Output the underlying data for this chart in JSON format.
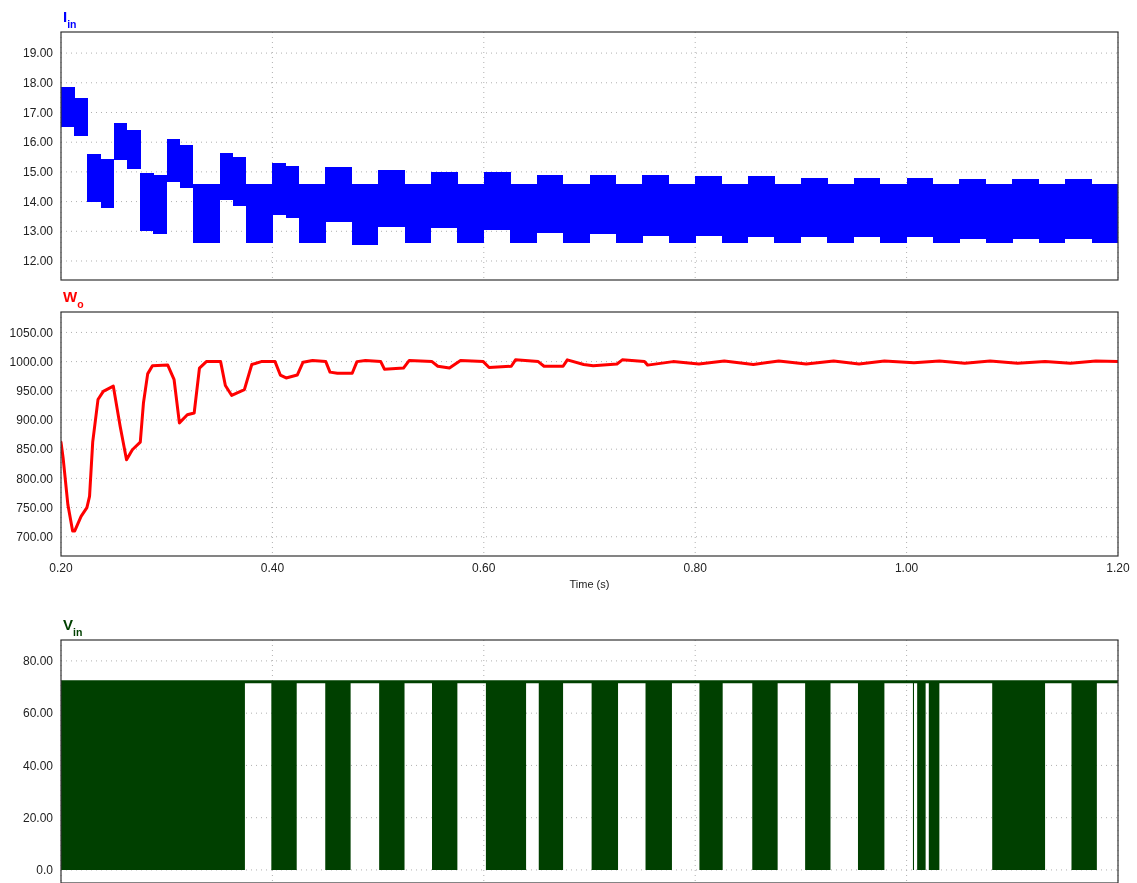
{
  "chart_data": [
    {
      "type": "bar",
      "title": "I$_{in}$",
      "xlim": [
        0.2,
        1.2
      ],
      "ylim": [
        11.36,
        19.71
      ],
      "grid": true,
      "tick_labels": "y",
      "xticks": [
        0.2,
        0.4,
        0.6,
        0.8,
        1.0,
        1.2
      ],
      "yticks": [
        {
          "value": 12,
          "label": "12.00"
        },
        {
          "value": 13,
          "label": "13.00"
        },
        {
          "value": 14,
          "label": "14.00"
        },
        {
          "value": 15,
          "label": "15.00"
        },
        {
          "value": 16,
          "label": "16.00"
        },
        {
          "value": 17,
          "label": "17.00"
        },
        {
          "value": 18,
          "label": "18.00"
        },
        {
          "value": 19,
          "label": "19.00"
        }
      ],
      "x": [
        0.20625,
        0.21875,
        0.23125,
        0.24375,
        0.25625,
        0.26875,
        0.28125,
        0.29375,
        0.30625,
        0.31875,
        0.33125,
        0.34375,
        0.35625,
        0.36875,
        0.38125,
        0.39375,
        0.40625,
        0.41875,
        0.43125,
        0.44375,
        0.45625,
        0.46875,
        0.48125,
        0.49375,
        0.50625,
        0.51875,
        0.53125,
        0.54375,
        0.55625,
        0.56875,
        0.58125,
        0.59375,
        0.60625,
        0.61875,
        0.63125,
        0.64375,
        0.65625,
        0.66875,
        0.68125,
        0.69375,
        0.70625,
        0.71875,
        0.73125,
        0.74375,
        0.75625,
        0.76875,
        0.78125,
        0.79375,
        0.80625,
        0.81875,
        0.83125,
        0.84375,
        0.85625,
        0.86875,
        0.88125,
        0.89375,
        0.90625,
        0.91875,
        0.93125,
        0.94375,
        0.95625,
        0.96875,
        0.98125,
        0.99375,
        1.00625,
        1.01875,
        1.03125,
        1.04375,
        1.05625,
        1.06875,
        1.08125,
        1.09375,
        1.10625,
        1.11875,
        1.13125,
        1.14375,
        1.15625,
        1.16875,
        1.18125,
        1.19375
      ],
      "series": [
        {
          "color": "#0000ff",
          "base": [
            16.5,
            16.2,
            14.0,
            13.8,
            15.4,
            15.1,
            13.0,
            12.9,
            14.65,
            14.45,
            12.6,
            12.6,
            14.05,
            13.85,
            12.6,
            12.6,
            13.55,
            13.45,
            12.6,
            12.6,
            13.3,
            13.3,
            12.55,
            12.55,
            13.15,
            13.15,
            12.6,
            12.6,
            13.1,
            13.1,
            12.6,
            12.6,
            13.05,
            13.05,
            12.6,
            12.6,
            12.95,
            12.95,
            12.6,
            12.6,
            12.9,
            12.9,
            12.6,
            12.6,
            12.85,
            12.85,
            12.6,
            12.6,
            12.85,
            12.85,
            12.6,
            12.6,
            12.8,
            12.8,
            12.6,
            12.6,
            12.8,
            12.8,
            12.6,
            12.6,
            12.8,
            12.8,
            12.6,
            12.6,
            12.8,
            12.8,
            12.6,
            12.6,
            12.75,
            12.75,
            12.6,
            12.6,
            12.75,
            12.75,
            12.6,
            12.6,
            12.75,
            12.75,
            12.6,
            12.6
          ],
          "values": [
            1.35,
            1.3,
            1.6,
            1.65,
            1.25,
            1.3,
            1.95,
            2.0,
            1.45,
            1.45,
            2.0,
            2.0,
            1.6,
            1.65,
            2.0,
            2.0,
            1.75,
            1.75,
            2.0,
            2.0,
            1.85,
            1.85,
            2.05,
            2.05,
            1.9,
            1.9,
            2.0,
            2.0,
            1.9,
            1.9,
            2.0,
            2.0,
            1.95,
            1.95,
            2.0,
            2.0,
            1.95,
            1.95,
            2.0,
            2.0,
            2.0,
            2.0,
            2.0,
            2.0,
            2.05,
            2.05,
            2.0,
            2.0,
            2.0,
            2.0,
            2.0,
            2.0,
            2.05,
            2.05,
            2.0,
            2.0,
            2.0,
            2.0,
            2.0,
            2.0,
            2.0,
            2.0,
            2.0,
            2.0,
            2.0,
            2.0,
            2.0,
            2.0,
            2.0,
            2.0,
            2.0,
            2.0,
            2.0,
            2.0,
            2.0,
            2.0,
            2.0,
            2.0,
            2.0,
            2.0
          ]
        }
      ]
    },
    {
      "type": "line",
      "title": "W$_{o}$",
      "xlabel": "Time (s)",
      "xlim": [
        0.2,
        1.2
      ],
      "ylim": [
        667,
        1085
      ],
      "grid": true,
      "line_style": "solid",
      "xticks": [
        {
          "value": 0.2,
          "label": "0.20"
        },
        {
          "value": 0.4,
          "label": "0.40"
        },
        {
          "value": 0.6,
          "label": "0.60"
        },
        {
          "value": 0.8,
          "label": "0.80"
        },
        {
          "value": 1.0,
          "label": "1.00"
        },
        {
          "value": 1.2,
          "label": "1.20"
        }
      ],
      "yticks": [
        {
          "value": 700,
          "label": "700.00"
        },
        {
          "value": 750,
          "label": "750.00"
        },
        {
          "value": 800,
          "label": "800.00"
        },
        {
          "value": 850,
          "label": "850.00"
        },
        {
          "value": 900,
          "label": "900.00"
        },
        {
          "value": 950,
          "label": "950.00"
        },
        {
          "value": 1000,
          "label": "1000.00"
        },
        {
          "value": 1050,
          "label": "1050.00"
        }
      ],
      "series": [
        {
          "color": "#ff0000",
          "x": [
            0.2,
            0.202,
            0.2065,
            0.211,
            0.213,
            0.219,
            0.2245,
            0.227,
            0.23,
            0.235,
            0.24,
            0.2495,
            0.256,
            0.262,
            0.2675,
            0.275,
            0.278,
            0.282,
            0.2865,
            0.301,
            0.307,
            0.312,
            0.3195,
            0.326,
            0.331,
            0.3375,
            0.351,
            0.3555,
            0.3615,
            0.3735,
            0.3805,
            0.3895,
            0.4025,
            0.4075,
            0.413,
            0.4235,
            0.429,
            0.438,
            0.4505,
            0.4545,
            0.4615,
            0.4755,
            0.48,
            0.488,
            0.5025,
            0.506,
            0.524,
            0.5295,
            0.551,
            0.5565,
            0.5675,
            0.578,
            0.5995,
            0.605,
            0.626,
            0.63,
            0.6515,
            0.657,
            0.675,
            0.679,
            0.6945,
            0.7035,
            0.726,
            0.731,
            0.752,
            0.755,
            0.779,
            0.8035,
            0.8275,
            0.855,
            0.879,
            0.905,
            0.931,
            0.955,
            0.979,
            1.007,
            1.031,
            1.055,
            1.079,
            1.105,
            1.131,
            1.155,
            1.179,
            1.2
          ],
          "values": [
            862,
            835,
            755,
            710,
            710,
            735,
            750,
            769,
            862,
            935,
            949,
            958,
            889,
            832,
            849,
            862,
            929,
            979,
            993,
            994,
            969,
            895,
            909,
            912,
            989,
            1000,
            1000,
            959,
            942,
            952,
            995,
            1000,
            1000,
            977,
            972,
            977,
            999,
            1002,
            1000,
            982,
            980,
            980,
            1000,
            1002,
            1000,
            987,
            989,
            1002,
            1000,
            992,
            989,
            1002,
            1000,
            990,
            992,
            1003,
            1000,
            992,
            992,
            1003,
            995,
            993,
            996,
            1003,
            1000,
            994,
            1000,
            996,
            1001,
            995,
            1001,
            996,
            1001,
            996,
            1001,
            998,
            1001,
            997,
            1001,
            997,
            1000,
            997,
            1001,
            1000
          ]
        }
      ]
    },
    {
      "type": "area",
      "title": "V$_{in}$",
      "xlim": [
        0.2,
        1.2
      ],
      "ylim": [
        -5,
        88
      ],
      "grid": true,
      "tick_labels": "y",
      "xticks": [
        0.2,
        0.4,
        0.6,
        0.8,
        1.0,
        1.2
      ],
      "yticks": [
        {
          "value": 0,
          "label": "0.0"
        },
        {
          "value": 20,
          "label": "20.00"
        },
        {
          "value": 40,
          "label": "40.00"
        },
        {
          "value": 60,
          "label": "60.00"
        },
        {
          "value": 80,
          "label": "80.00"
        }
      ],
      "ref_lines": [
        {
          "axis": "y",
          "value": 72,
          "color": "#004000"
        }
      ],
      "series": [
        {
          "color": "#004000",
          "x": [
            0.2,
            0.374,
            0.374,
            0.399,
            0.399,
            0.423,
            0.423,
            0.45,
            0.45,
            0.474,
            0.474,
            0.501,
            0.501,
            0.525,
            0.525,
            0.551,
            0.551,
            0.575,
            0.575,
            0.602,
            0.602,
            0.64,
            0.64,
            0.652,
            0.652,
            0.675,
            0.675,
            0.702,
            0.702,
            0.727,
            0.727,
            0.753,
            0.753,
            0.778,
            0.778,
            0.804,
            0.804,
            0.826,
            0.826,
            0.854,
            0.854,
            0.878,
            0.878,
            0.904,
            0.904,
            0.928,
            0.928,
            0.954,
            0.954,
            0.979,
            0.979,
            1.006,
            1.006,
            1.007,
            1.007,
            1.01,
            1.01,
            1.018,
            1.018,
            1.021,
            1.021,
            1.031,
            1.031,
            1.081,
            1.081,
            1.131,
            1.131,
            1.156,
            1.156,
            1.18,
            1.18,
            1.2
          ],
          "values": [
            72,
            72,
            0,
            0,
            72,
            72,
            0,
            0,
            72,
            72,
            0,
            0,
            72,
            72,
            0,
            0,
            72,
            72,
            0,
            0,
            72,
            72,
            0,
            0,
            72,
            72,
            0,
            0,
            72,
            72,
            0,
            0,
            72,
            72,
            0,
            0,
            72,
            72,
            0,
            0,
            72,
            72,
            0,
            0,
            72,
            72,
            0,
            0,
            72,
            72,
            0,
            0,
            72,
            72,
            0,
            0,
            72,
            72,
            0,
            0,
            72,
            72,
            0,
            0,
            72,
            72,
            0,
            0,
            72,
            72,
            0,
            0
          ]
        }
      ]
    }
  ]
}
